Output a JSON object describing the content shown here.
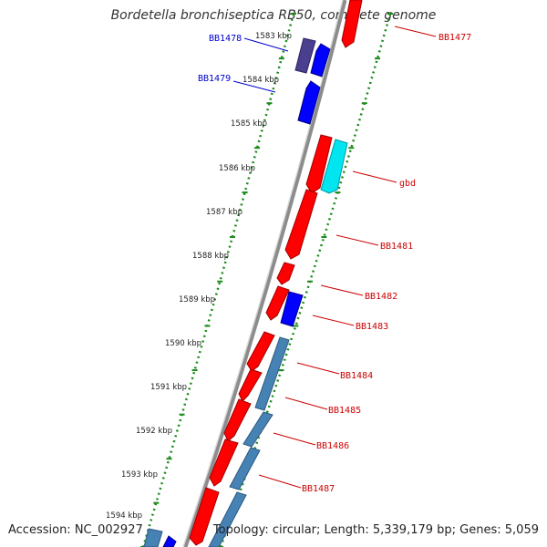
{
  "title": "Bordetella bronchiseptica RB50, complete genome",
  "accession": "Accession: NC_002927",
  "stats": "Topology: circular; Length: 5,339,179 bp; Genes: 5,059",
  "colors": {
    "backbone": "#8c8c8c",
    "tick_dots": "#1a8a1a",
    "forward_label": "#0000cc",
    "reverse_label": "#cc0000",
    "forward_cds": "#0000ff",
    "forward_dark": "#4a3f8f",
    "reverse_cds": "#ff0000",
    "gbd_cds": "#00e5f0",
    "rna_cds": "#4682b4"
  },
  "kbp_ticks": [
    "1583 kbp",
    "1584 kbp",
    "1585 kbp",
    "1586 kbp",
    "1587 kbp",
    "1588 kbp",
    "1589 kbp",
    "1590 kbp",
    "1591 kbp",
    "1592 kbp",
    "1593 kbp",
    "1594 kbp"
  ],
  "gene_labels": {
    "forward": [
      "BB1478",
      "BB1479"
    ],
    "reverse": [
      "BB1477",
      "gbd",
      "BB1481",
      "BB1482",
      "BB1483",
      "BB1484",
      "BB1485",
      "BB1486",
      "BB1487"
    ]
  }
}
